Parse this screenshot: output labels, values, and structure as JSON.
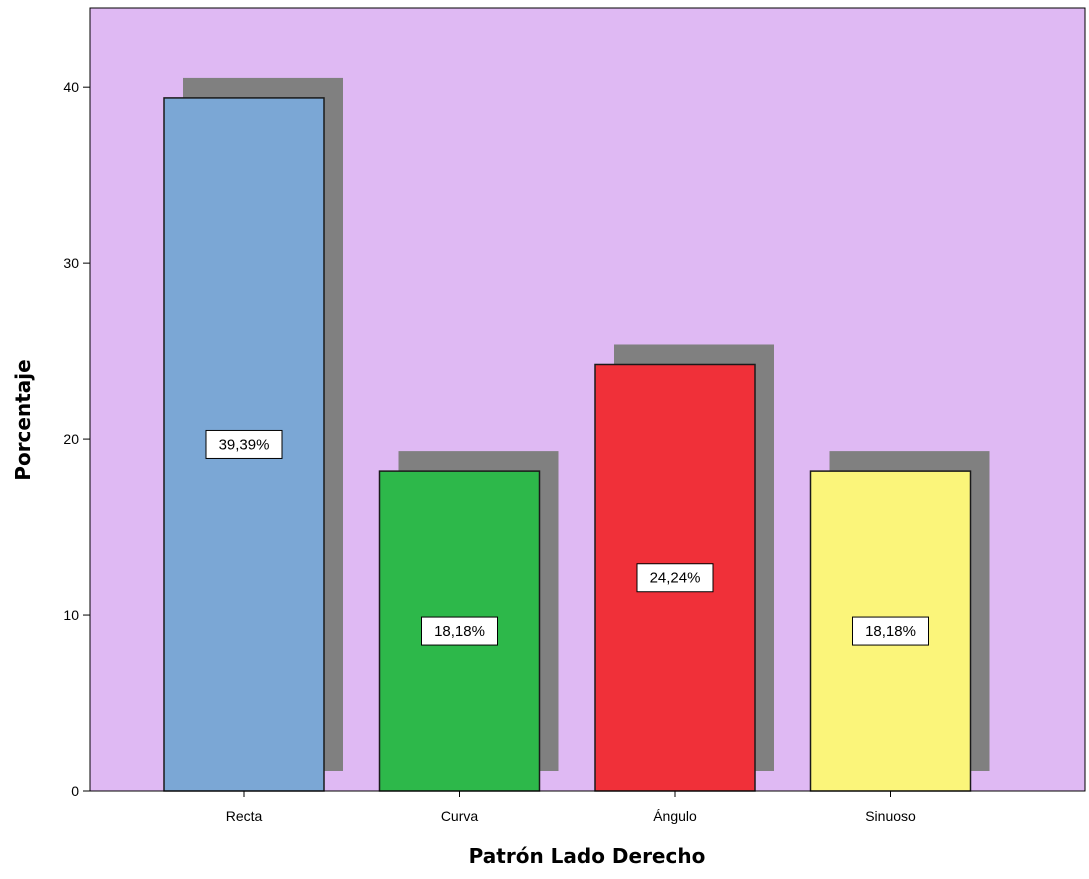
{
  "chart_data": {
    "type": "bar",
    "categories": [
      "Recta",
      "Curva",
      "Ángulo",
      "Sinuoso"
    ],
    "values": [
      39.39,
      18.18,
      24.24,
      18.18
    ],
    "data_labels": [
      "39,39%",
      "18,18%",
      "24,24%",
      "18,18%"
    ],
    "colors": [
      "#7ba7d5",
      "#2db84a",
      "#f03039",
      "#fbf57a"
    ],
    "plot_background": "#dfb9f3",
    "shadow_color": "#808080",
    "xlabel": "Patrón Lado Derecho",
    "ylabel": "Porcentaje",
    "ylim": [
      0,
      44.5
    ],
    "yticks": [
      0,
      10,
      20,
      30,
      40
    ],
    "grid": false,
    "legend": "none"
  }
}
